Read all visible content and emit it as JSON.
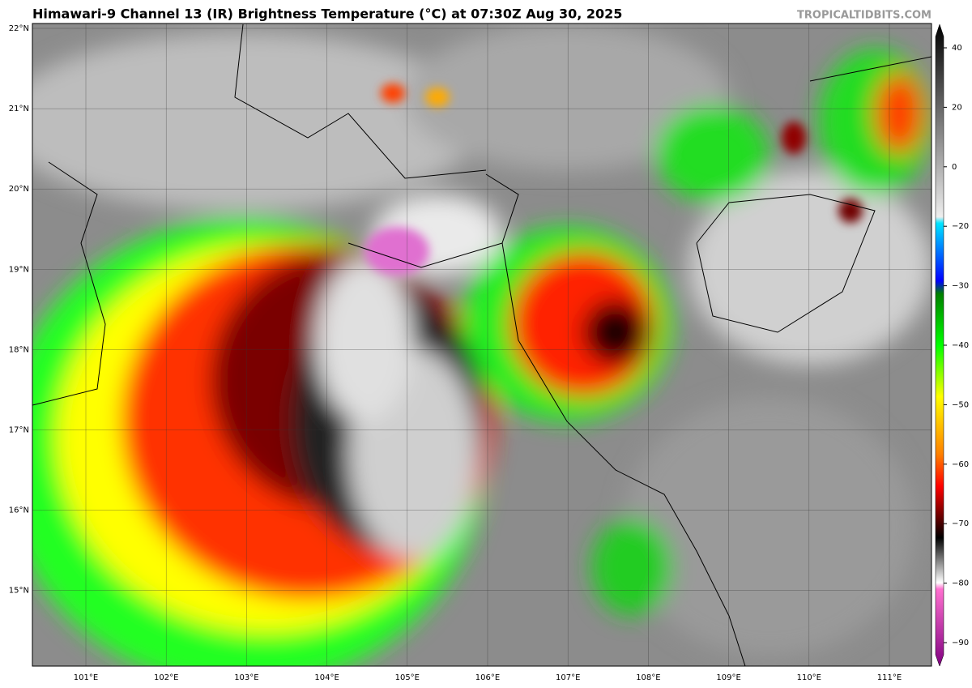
{
  "header": {
    "title": "Himawari-9 Channel 13 (IR) Brightness Temperature (°C) at 07:30Z Aug 30, 2025",
    "credit": "TROPICALTIDBITS.COM"
  },
  "map": {
    "lat_labels": [
      "22°N",
      "21°N",
      "20°N",
      "19°N",
      "18°N",
      "17°N",
      "16°N",
      "15°N"
    ],
    "lon_labels": [
      "101°E",
      "102°E",
      "103°E",
      "104°E",
      "105°E",
      "106°E",
      "107°E",
      "108°E",
      "109°E",
      "110°E",
      "111°E"
    ]
  },
  "colorbar": {
    "tick_labels": [
      "40",
      "20",
      "0",
      "−20",
      "−30",
      "−40",
      "−50",
      "−60",
      "−70",
      "−80",
      "−90"
    ]
  }
}
